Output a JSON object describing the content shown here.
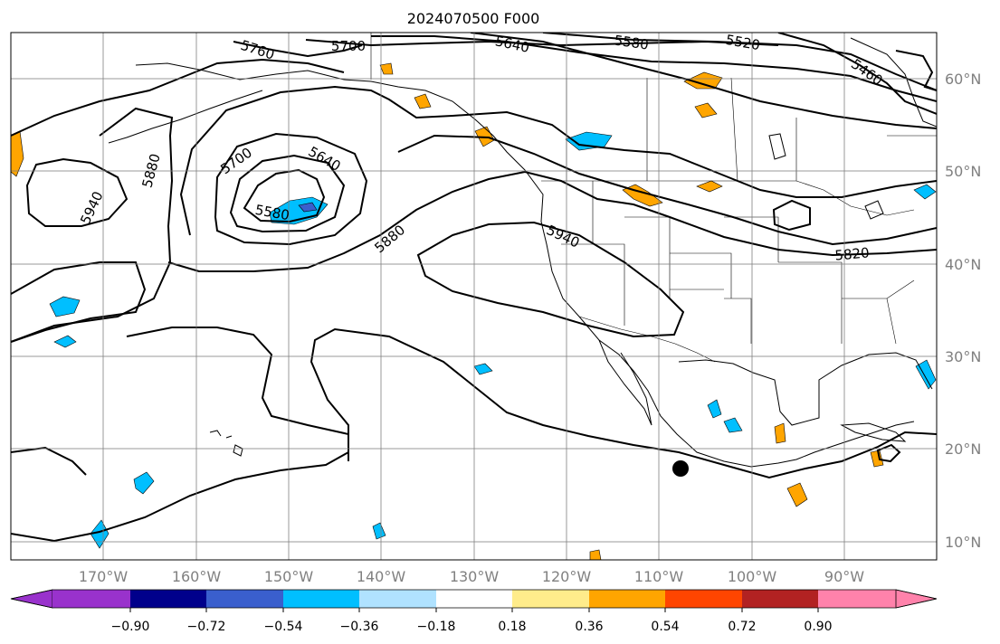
{
  "title": "2024070500 F000",
  "colors": {
    "land_outline": "#000000",
    "grid": "#808080",
    "contour": "#000000",
    "axis_label": "#808080",
    "marker": "#000000"
  },
  "map": {
    "lon_range": [
      -178,
      -78
    ],
    "lat_range": [
      8,
      65
    ],
    "projection": "equirectangular",
    "x_ticks": [
      "170°W",
      "160°W",
      "150°W",
      "140°W",
      "130°W",
      "120°W",
      "110°W",
      "100°W",
      "90°W"
    ],
    "y_ticks": [
      "10°N",
      "20°N",
      "30°N",
      "40°N",
      "50°N",
      "60°N"
    ],
    "grid": true,
    "storm_marker": {
      "lon": -107.8,
      "lat": 17.8,
      "shape": "filled circle"
    }
  },
  "contours": {
    "field": "geopotential height",
    "labels": [
      "5760",
      "5700",
      "5640",
      "5580",
      "5520",
      "5460",
      "5880",
      "5940",
      "5700",
      "5640",
      "5580",
      "5880",
      "5940",
      "5820"
    ]
  },
  "colorbar": {
    "ticks": [
      "−0.90",
      "−0.72",
      "−0.54",
      "−0.36",
      "−0.18",
      "0.18",
      "0.36",
      "0.54",
      "0.72",
      "0.90"
    ],
    "bins": [
      "#9932cc",
      "#00008b",
      "#3a5fcd",
      "#00bfff",
      "#b0e2ff",
      "#ffffff",
      "#ffec8b",
      "#ffa500",
      "#ff4500",
      "#b22222",
      "#ff82ab"
    ],
    "extend": "both"
  }
}
